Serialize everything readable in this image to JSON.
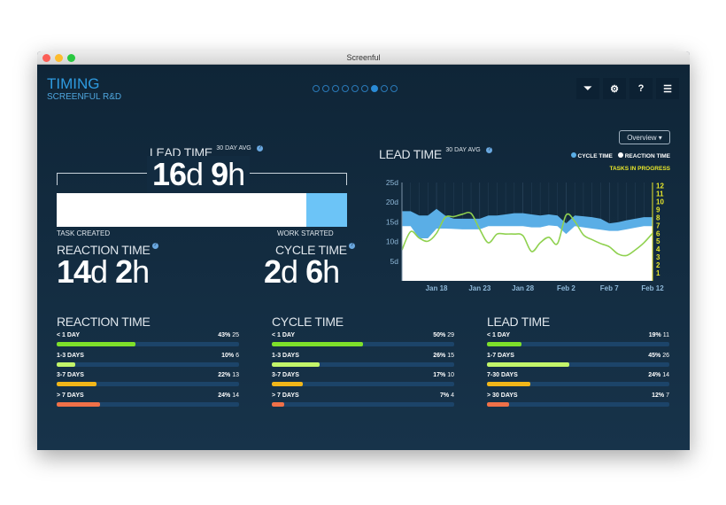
{
  "window": {
    "title": "Screenful"
  },
  "header": {
    "title": "TIMING",
    "subtitle": "SCREENFUL R&D",
    "pages": 9,
    "active_page": 7,
    "icons": [
      "filter-icon",
      "gear-icon",
      "help-icon",
      "menu-icon"
    ]
  },
  "view_select": {
    "value": "Overview ▾"
  },
  "summary": {
    "lead": {
      "label": "LEAD TIME",
      "sup": "30 DAY AVG",
      "days": "16",
      "hours": "9"
    },
    "bar": {
      "reaction_fraction": 0.86,
      "start_label": "TASK CREATED",
      "mid_label": "WORK STARTED"
    },
    "reaction": {
      "label": "REACTION TIME",
      "days": "14",
      "hours": "2"
    },
    "cycle": {
      "label": "CYCLE TIME",
      "days": "2",
      "hours": "6"
    },
    "unit_d": "d",
    "unit_h": "h",
    "help": "?"
  },
  "chart_data": {
    "type": "area",
    "title": "LEAD TIME",
    "title_sup": "30 DAY AVG",
    "legend": [
      {
        "name": "CYCLE TIME",
        "color": "#5aaee6"
      },
      {
        "name": "REACTION TIME",
        "color": "#ffffff"
      }
    ],
    "right_series_label": "TASKS IN PROGRESS",
    "x_ticks": [
      "Jan 18",
      "Jan 23",
      "Jan 28",
      "Feb 2",
      "Feb 7",
      "Feb 12"
    ],
    "x_range": [
      "Jan 14",
      "Feb 12"
    ],
    "y_ticks": [
      "5d",
      "10d",
      "15d",
      "20d",
      "25d"
    ],
    "ylim": [
      0,
      25
    ],
    "y2_ticks": [
      "1",
      "2",
      "3",
      "4",
      "5",
      "6",
      "7",
      "8",
      "9",
      "10",
      "11",
      "12"
    ],
    "y2lim": [
      0,
      12.4
    ],
    "lead_time_days": [
      17.7,
      17.7,
      16.6,
      16.6,
      18.3,
      16.6,
      15.8,
      15.8,
      15.8,
      15.8,
      16.6,
      16.6,
      16.9,
      17.2,
      17.2,
      16.9,
      16.6,
      16.9,
      16.6,
      14.6,
      16.6,
      16.4,
      16.2,
      15.8,
      14.6,
      14.9,
      15.4,
      15.8,
      16.2,
      16.2
    ],
    "reaction_time_days": [
      13.9,
      13.9,
      10.8,
      10.8,
      13.3,
      13.3,
      13.2,
      13.1,
      13.1,
      13.1,
      13.9,
      13.9,
      13.9,
      13.9,
      13.9,
      13.6,
      13.6,
      14.1,
      13.9,
      11.9,
      13.9,
      13.6,
      13.3,
      13.0,
      12.7,
      12.7,
      13.1,
      13.5,
      13.9,
      13.9
    ],
    "tasks_in_progress": [
      3.9,
      6.2,
      5.4,
      5.0,
      6.0,
      8.0,
      8.1,
      8.4,
      8.5,
      6.5,
      4.8,
      5.9,
      5.9,
      5.9,
      5.7,
      3.7,
      4.8,
      5.5,
      4.7,
      8.3,
      7.5,
      5.8,
      5.2,
      4.7,
      4.3,
      3.4,
      3.2,
      3.9,
      4.8,
      6.0
    ],
    "colors": {
      "cycle": "#5aaee6",
      "reaction": "#ffffff",
      "tasks": "#8fd14f",
      "tasks_axis": "#e8e62a",
      "axis_text": "#8fb8d8"
    }
  },
  "distributions": [
    {
      "title": "REACTION TIME",
      "rows": [
        {
          "label": "< 1 DAY",
          "pct": "43%",
          "count": "25",
          "value": 43,
          "color": "#7ee02a"
        },
        {
          "label": "1-3 DAYS",
          "pct": "10%",
          "count": "6",
          "value": 10,
          "color": "#c3f56a"
        },
        {
          "label": "3-7 DAYS",
          "pct": "22%",
          "count": "13",
          "value": 22,
          "color": "#f2b619"
        },
        {
          "label": "> 7 DAYS",
          "pct": "24%",
          "count": "14",
          "value": 24,
          "color": "#f07048"
        }
      ]
    },
    {
      "title": "CYCLE TIME",
      "rows": [
        {
          "label": "< 1 DAY",
          "pct": "50%",
          "count": "29",
          "value": 50,
          "color": "#7ee02a"
        },
        {
          "label": "1-3 DAYS",
          "pct": "26%",
          "count": "15",
          "value": 26,
          "color": "#c3f56a"
        },
        {
          "label": "3-7 DAYS",
          "pct": "17%",
          "count": "10",
          "value": 17,
          "color": "#f2b619"
        },
        {
          "label": "> 7 DAYS",
          "pct": "7%",
          "count": "4",
          "value": 7,
          "color": "#f07048"
        }
      ]
    },
    {
      "title": "LEAD TIME",
      "rows": [
        {
          "label": "< 1 DAY",
          "pct": "19%",
          "count": "11",
          "value": 19,
          "color": "#7ee02a"
        },
        {
          "label": "1-7 DAYS",
          "pct": "45%",
          "count": "26",
          "value": 45,
          "color": "#c3f56a"
        },
        {
          "label": "7-30 DAYS",
          "pct": "24%",
          "count": "14",
          "value": 24,
          "color": "#f2b619"
        },
        {
          "label": "> 30 DAYS",
          "pct": "12%",
          "count": "7",
          "value": 12,
          "color": "#f07048"
        }
      ]
    }
  ]
}
